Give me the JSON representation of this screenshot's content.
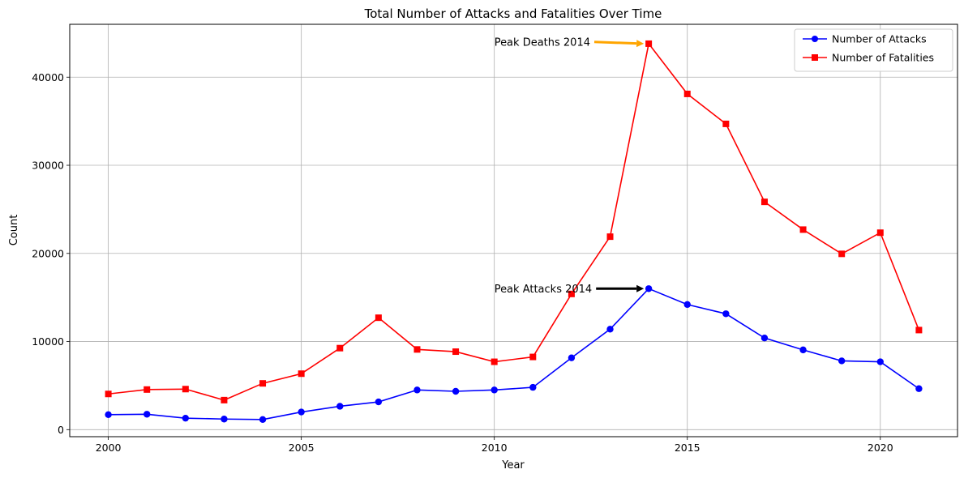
{
  "chart_data": {
    "type": "line",
    "title": "Total Number of Attacks and Fatalities Over Time",
    "xlabel": "Year",
    "ylabel": "Count",
    "xlim": [
      1999,
      2022
    ],
    "ylim": [
      -800,
      46000
    ],
    "x_ticks": [
      2000,
      2005,
      2010,
      2015,
      2020
    ],
    "y_ticks": [
      0,
      10000,
      20000,
      30000,
      40000
    ],
    "grid": true,
    "legend_position": "top-right",
    "x": [
      2000,
      2001,
      2002,
      2003,
      2004,
      2005,
      2006,
      2007,
      2008,
      2009,
      2010,
      2011,
      2012,
      2013,
      2014,
      2015,
      2016,
      2017,
      2018,
      2019,
      2020,
      2021
    ],
    "series": [
      {
        "name": "Number of Attacks",
        "color": "#0000ff",
        "marker": "circle",
        "values": [
          1700,
          1750,
          1300,
          1200,
          1150,
          2000,
          2650,
          3150,
          4500,
          4350,
          4500,
          4800,
          8150,
          11400,
          16000,
          14200,
          13150,
          10400,
          9050,
          7800,
          7700,
          4650
        ]
      },
      {
        "name": "Number of Fatalities",
        "color": "#ff0000",
        "marker": "square",
        "values": [
          4050,
          4550,
          4600,
          3350,
          5250,
          6350,
          9250,
          12700,
          9100,
          8850,
          7700,
          8250,
          15400,
          21900,
          43800,
          38100,
          34700,
          25850,
          22700,
          19950,
          22350,
          11300
        ]
      }
    ],
    "annotations": [
      {
        "text": "Peak Deaths 2014",
        "text_x": 2010,
        "text_y": 44000,
        "point_x": 2014,
        "point_y": 43800,
        "arrow_color": "#ffa500"
      },
      {
        "text": "Peak Attacks 2014",
        "text_x": 2010,
        "text_y": 16000,
        "point_x": 2014,
        "point_y": 16000,
        "arrow_color": "#000000"
      }
    ]
  }
}
